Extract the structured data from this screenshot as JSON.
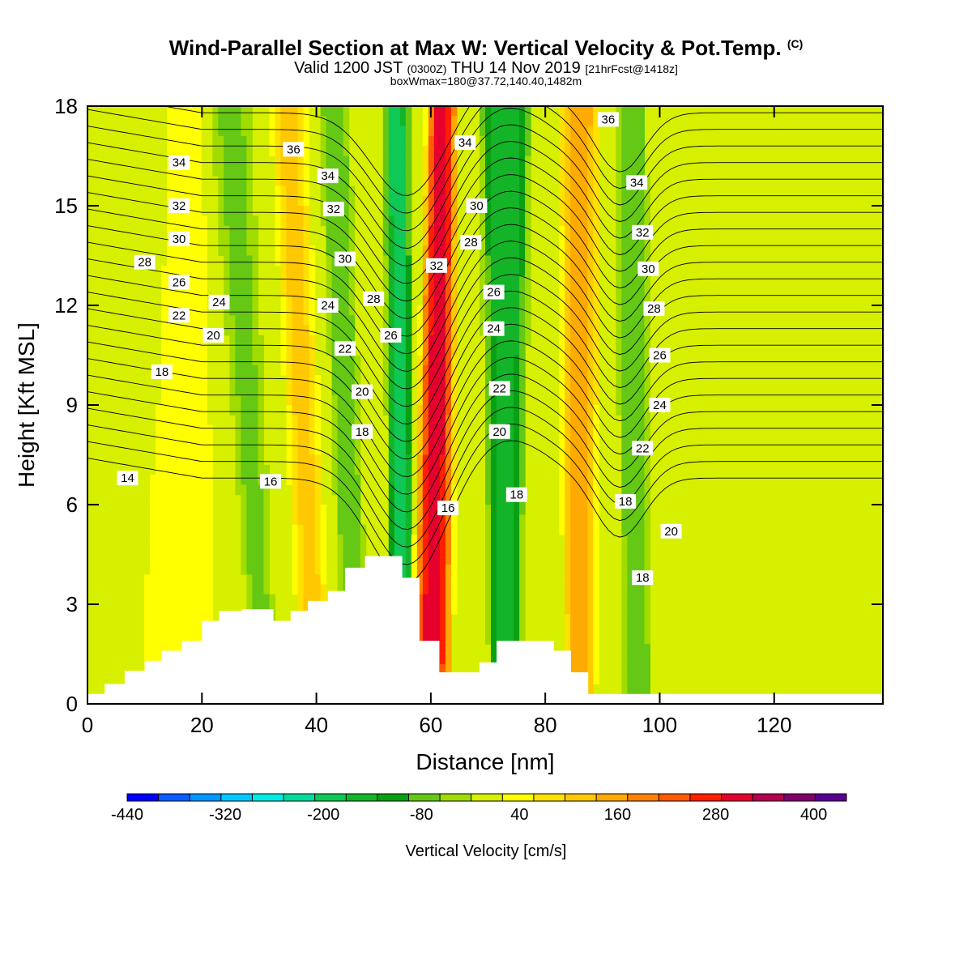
{
  "header": {
    "title": "Wind-Parallel Section at Max W: Vertical Velocity & Pot.Temp.",
    "copyright": "(C)",
    "valid_prefix": "Valid 1200 JST",
    "valid_utc": "(0300Z)",
    "valid_date": "THU 14 Nov 2019",
    "forecast": "[21hrFcst@1418z]",
    "box_info": "boxWmax=180@37.72,140.40,1482m"
  },
  "chart_data": {
    "type": "heatmap",
    "xlabel": "Distance [nm]",
    "ylabel": "Height [Kft MSL]",
    "xlim": [
      0,
      139
    ],
    "ylim": [
      0,
      18
    ],
    "x_ticks": [
      0,
      20,
      40,
      60,
      80,
      100,
      120
    ],
    "y_ticks": [
      0,
      3,
      6,
      9,
      12,
      15,
      18
    ],
    "colorbar": {
      "label": "Vertical Velocity [cm/s]",
      "tick_labels": [
        -440,
        -320,
        -200,
        -80,
        40,
        160,
        280,
        400
      ],
      "bounds": [
        -440,
        440
      ],
      "step": 40,
      "colors": [
        "#0000ff",
        "#0a5cff",
        "#0096ff",
        "#00c8ff",
        "#00ebe6",
        "#00dc9b",
        "#0fc855",
        "#14b428",
        "#0aa014",
        "#64c814",
        "#a0dc00",
        "#d7f000",
        "#ffff00",
        "#ffe100",
        "#ffc800",
        "#ffaa00",
        "#ff8200",
        "#ff5a00",
        "#ff1e00",
        "#e6002d",
        "#b40050",
        "#82006e",
        "#5a0091"
      ]
    },
    "velocity_bands": [
      {
        "x_top": 8,
        "x_bottom": 6,
        "w_top": 8,
        "w_bottom": 16,
        "w": 40
      },
      {
        "x_top": 17,
        "x_bottom": 17,
        "w_top": 8,
        "w_bottom": 16,
        "w": 60
      },
      {
        "x_top": 25,
        "x_bottom": 31,
        "w_top": 8,
        "w_bottom": 5,
        "w": -60
      },
      {
        "x_top": 35,
        "x_bottom": 40,
        "w_top": 7,
        "w_bottom": 6,
        "w": 140
      },
      {
        "x_top": 43,
        "x_bottom": 47,
        "w_top": 6,
        "w_bottom": 5,
        "w": -80
      },
      {
        "x_top": 48,
        "x_bottom": 51,
        "w_top": 5,
        "w_bottom": 4,
        "w": 20
      },
      {
        "x_top": 54,
        "x_bottom": 55,
        "w_top": 5,
        "w_bottom": 5,
        "w": -200
      },
      {
        "x_top": 62,
        "x_bottom": 60,
        "w_top": 6,
        "w_bottom": 8,
        "w": 360
      },
      {
        "x_top": 73,
        "x_bottom": 73,
        "w_top": 10,
        "w_bottom": 6,
        "w": -160
      },
      {
        "x_top": 86,
        "x_bottom": 86,
        "w_top": 8,
        "w_bottom": 6,
        "w": 200
      },
      {
        "x_top": 95,
        "x_bottom": 96,
        "w_top": 6,
        "w_bottom": 6,
        "w": -80
      }
    ],
    "contours": {
      "series_name": "Pot.Temp.",
      "levels": [
        14,
        15,
        16,
        17,
        18,
        19,
        20,
        21,
        22,
        23,
        24,
        25,
        26,
        27,
        28,
        29,
        30,
        31,
        32,
        33,
        34,
        35,
        36
      ],
      "labels": [
        {
          "value": "14",
          "x": 7,
          "y": 6.8
        },
        {
          "value": "16",
          "x": 32,
          "y": 6.7
        },
        {
          "value": "16",
          "x": 63,
          "y": 5.9
        },
        {
          "value": "18",
          "x": 13,
          "y": 10.0
        },
        {
          "value": "18",
          "x": 48,
          "y": 8.2
        },
        {
          "value": "18",
          "x": 75,
          "y": 6.3
        },
        {
          "value": "18",
          "x": 94,
          "y": 6.1
        },
        {
          "value": "18",
          "x": 97,
          "y": 3.8
        },
        {
          "value": "20",
          "x": 22,
          "y": 11.1
        },
        {
          "value": "20",
          "x": 48,
          "y": 9.4
        },
        {
          "value": "20",
          "x": 72,
          "y": 8.2
        },
        {
          "value": "20",
          "x": 102,
          "y": 5.2
        },
        {
          "value": "22",
          "x": 16,
          "y": 11.7
        },
        {
          "value": "22",
          "x": 45,
          "y": 10.7
        },
        {
          "value": "22",
          "x": 72,
          "y": 9.5
        },
        {
          "value": "22",
          "x": 97,
          "y": 7.7
        },
        {
          "value": "24",
          "x": 23,
          "y": 12.1
        },
        {
          "value": "24",
          "x": 42,
          "y": 12.0
        },
        {
          "value": "24",
          "x": 71,
          "y": 11.3
        },
        {
          "value": "24",
          "x": 100,
          "y": 9.0
        },
        {
          "value": "26",
          "x": 16,
          "y": 12.7
        },
        {
          "value": "26",
          "x": 53,
          "y": 11.1
        },
        {
          "value": "26",
          "x": 71,
          "y": 12.4
        },
        {
          "value": "26",
          "x": 100,
          "y": 10.5
        },
        {
          "value": "28",
          "x": 10,
          "y": 13.3
        },
        {
          "value": "28",
          "x": 50,
          "y": 12.2
        },
        {
          "value": "28",
          "x": 67,
          "y": 13.9
        },
        {
          "value": "28",
          "x": 99,
          "y": 11.9
        },
        {
          "value": "30",
          "x": 16,
          "y": 14.0
        },
        {
          "value": "30",
          "x": 45,
          "y": 13.4
        },
        {
          "value": "30",
          "x": 68,
          "y": 15.0
        },
        {
          "value": "30",
          "x": 98,
          "y": 13.1
        },
        {
          "value": "32",
          "x": 16,
          "y": 15.0
        },
        {
          "value": "32",
          "x": 43,
          "y": 14.9
        },
        {
          "value": "32",
          "x": 61,
          "y": 13.2
        },
        {
          "value": "32",
          "x": 97,
          "y": 14.2
        },
        {
          "value": "34",
          "x": 16,
          "y": 16.3
        },
        {
          "value": "34",
          "x": 42,
          "y": 15.9
        },
        {
          "value": "34",
          "x": 66,
          "y": 16.9
        },
        {
          "value": "34",
          "x": 96,
          "y": 15.7
        },
        {
          "value": "36",
          "x": 36,
          "y": 16.7
        },
        {
          "value": "36",
          "x": 91,
          "y": 17.6
        }
      ]
    },
    "terrain": [
      [
        0,
        0.3
      ],
      [
        3,
        0.3
      ],
      [
        3,
        0.6
      ],
      [
        6.5,
        0.6
      ],
      [
        6.5,
        1.0
      ],
      [
        10,
        1.0
      ],
      [
        10,
        1.3
      ],
      [
        13,
        1.3
      ],
      [
        13,
        1.6
      ],
      [
        16.5,
        1.6
      ],
      [
        16.5,
        1.9
      ],
      [
        20,
        1.9
      ],
      [
        20,
        2.5
      ],
      [
        23,
        2.5
      ],
      [
        23,
        2.8
      ],
      [
        27,
        2.8
      ],
      [
        27,
        2.85
      ],
      [
        32.5,
        2.85
      ],
      [
        32.5,
        2.5
      ],
      [
        35.5,
        2.5
      ],
      [
        35.5,
        2.8
      ],
      [
        38.5,
        2.8
      ],
      [
        38.5,
        3.1
      ],
      [
        42,
        3.1
      ],
      [
        42,
        3.4
      ],
      [
        45,
        3.4
      ],
      [
        45,
        4.1
      ],
      [
        48.5,
        4.1
      ],
      [
        48.5,
        4.45
      ],
      [
        55,
        4.45
      ],
      [
        55,
        3.8
      ],
      [
        58,
        3.8
      ],
      [
        58,
        1.9
      ],
      [
        61.5,
        1.9
      ],
      [
        61.5,
        0.95
      ],
      [
        68.5,
        0.95
      ],
      [
        68.5,
        1.25
      ],
      [
        71.5,
        1.25
      ],
      [
        71.5,
        1.9
      ],
      [
        81.5,
        1.9
      ],
      [
        81.5,
        1.6
      ],
      [
        84.5,
        1.6
      ],
      [
        84.5,
        0.95
      ],
      [
        87.5,
        0.95
      ],
      [
        87.5,
        0.3
      ],
      [
        139,
        0.3
      ]
    ]
  }
}
